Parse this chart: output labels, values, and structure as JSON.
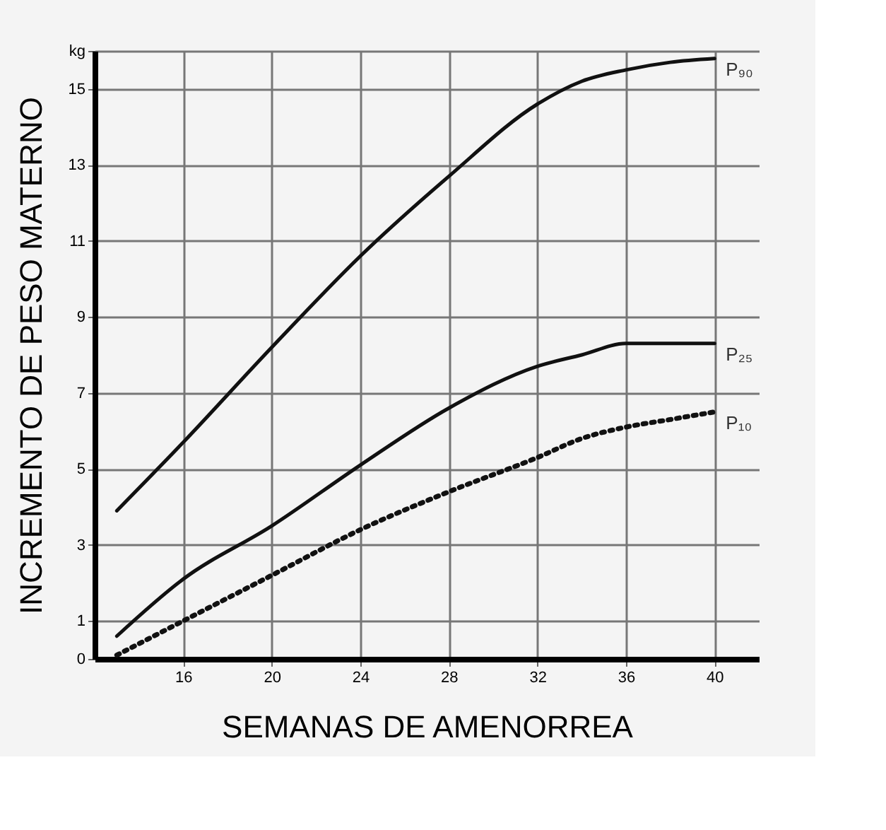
{
  "chart_data": {
    "type": "line",
    "xlabel": "SEMANAS DE AMENORREA",
    "ylabel": "INCREMENTO DE PESO MATERNO",
    "x": [
      13,
      16,
      20,
      24,
      28,
      32,
      34,
      36,
      38,
      40
    ],
    "series": [
      {
        "name": "P₉₀",
        "color": "#111111",
        "line_style": "solid",
        "values": [
          3.9,
          5.7,
          8.2,
          10.6,
          12.7,
          14.6,
          15.2,
          15.5,
          15.7,
          15.8
        ]
      },
      {
        "name": "P₂₅",
        "color": "#111111",
        "line_style": "solid",
        "values": [
          0.6,
          2.1,
          3.5,
          5.1,
          6.6,
          7.7,
          8.0,
          8.3,
          8.3,
          8.3
        ]
      },
      {
        "name": "P₁₀",
        "color": "#111111",
        "line_style": "dotted",
        "values": [
          0.1,
          1.0,
          2.2,
          3.4,
          4.4,
          5.3,
          5.8,
          6.1,
          6.3,
          6.5
        ]
      }
    ],
    "xlim": [
      12,
      42
    ],
    "xticks": [
      16,
      20,
      24,
      28,
      32,
      36,
      40
    ],
    "ylim": [
      0,
      16
    ],
    "yticks": [
      0,
      1,
      3,
      5,
      7,
      9,
      11,
      13,
      15,
      {
        "value": 16,
        "label": "kg"
      }
    ],
    "grid": true,
    "legend": false,
    "marker": "none"
  }
}
